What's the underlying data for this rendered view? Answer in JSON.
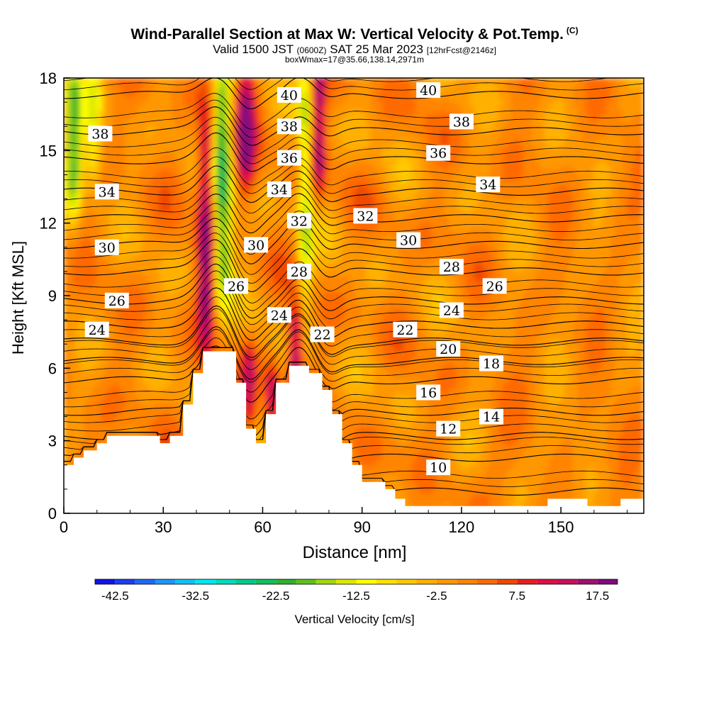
{
  "title": "Wind-Parallel Section at Max W: Vertical Velocity & Pot.Temp.",
  "title_suffix": "(C)",
  "subtitle_main": "Valid 1500 JST",
  "subtitle_utc": "(0600Z)",
  "subtitle_date": "SAT 25 Mar 2023",
  "subtitle_fcst": "[12hrFcst@2146z]",
  "subtitle_box": "boxWmax=17@35.66,138.14,2971m",
  "chart_data": {
    "type": "heatmap",
    "xlabel": "Distance [nm]",
    "ylabel": "Height [Kft MSL]",
    "xlim": [
      0,
      175
    ],
    "ylim": [
      0,
      18
    ],
    "xticks": [
      0,
      30,
      60,
      90,
      120,
      150
    ],
    "yticks": [
      0,
      3,
      6,
      9,
      12,
      15,
      18
    ],
    "colorbar": {
      "label": "Vertical Velocity [cm/s]",
      "min": -45,
      "max": 20,
      "step": 2.5,
      "tick_values": [
        -42.5,
        -32.5,
        -22.5,
        -12.5,
        -2.5,
        7.5,
        17.5
      ],
      "tick_labels": [
        "-42.5",
        "-32.5",
        "-22.5",
        "-12.5",
        "-2.5",
        "7.5",
        "17.5"
      ],
      "colors": [
        "#1212e8",
        "#1a3ef0",
        "#1f6af5",
        "#1e96f8",
        "#10c2f8",
        "#00e8f0",
        "#00dcbe",
        "#00cc8a",
        "#10c060",
        "#30b030",
        "#60c020",
        "#a0d810",
        "#dde800",
        "#ffff00",
        "#ffe000",
        "#ffc800",
        "#ffb000",
        "#ff9800",
        "#ff8400",
        "#ff6a00",
        "#f04800",
        "#e81e1e",
        "#dc1046",
        "#c8105e",
        "#a01070",
        "#800a80"
      ]
    },
    "theta_contours": [
      {
        "value": 10,
        "base_height": 0.9,
        "labels": [
          {
            "label": "10",
            "x": 113,
            "y": 1.9
          }
        ]
      },
      {
        "value": 12,
        "base_height": 2.3,
        "labels": [
          {
            "label": "12",
            "x": 116,
            "y": 3.5
          }
        ]
      },
      {
        "value": 14,
        "base_height": 3.2,
        "labels": [
          {
            "label": "14",
            "x": 129,
            "y": 4.0
          }
        ]
      },
      {
        "value": 16,
        "base_height": 4.2,
        "labels": [
          {
            "label": "16",
            "x": 110,
            "y": 5.0
          }
        ]
      },
      {
        "value": 18,
        "base_height": 5.5,
        "labels": [
          {
            "label": "18",
            "x": 129,
            "y": 6.2
          }
        ]
      },
      {
        "value": 20,
        "base_height": 6.3,
        "labels": [
          {
            "label": "20",
            "x": 116,
            "y": 6.8
          }
        ]
      },
      {
        "value": 22,
        "base_height": 7.1,
        "labels": [
          {
            "label": "22",
            "x": 78,
            "y": 7.4
          },
          {
            "label": "22",
            "x": 103,
            "y": 7.6
          }
        ]
      },
      {
        "value": 24,
        "base_height": 7.8,
        "labels": [
          {
            "label": "24",
            "x": 10,
            "y": 7.6
          },
          {
            "label": "24",
            "x": 65,
            "y": 8.2
          },
          {
            "label": "24",
            "x": 117,
            "y": 8.4
          }
        ]
      },
      {
        "value": 26,
        "base_height": 8.8,
        "labels": [
          {
            "label": "26",
            "x": 16,
            "y": 8.8
          },
          {
            "label": "26",
            "x": 52,
            "y": 9.4
          },
          {
            "label": "26",
            "x": 130,
            "y": 9.4
          }
        ]
      },
      {
        "value": 28,
        "base_height": 10.0,
        "labels": [
          {
            "label": "28",
            "x": 71,
            "y": 10.0
          },
          {
            "label": "28",
            "x": 117,
            "y": 10.2
          }
        ]
      },
      {
        "value": 30,
        "base_height": 11.1,
        "labels": [
          {
            "label": "30",
            "x": 13,
            "y": 11.0
          },
          {
            "label": "30",
            "x": 58,
            "y": 11.1
          },
          {
            "label": "30",
            "x": 104,
            "y": 11.3
          }
        ]
      },
      {
        "value": 32,
        "base_height": 12.2,
        "labels": [
          {
            "label": "32",
            "x": 71,
            "y": 12.1
          },
          {
            "label": "32",
            "x": 91,
            "y": 12.3
          }
        ]
      },
      {
        "value": 34,
        "base_height": 13.3,
        "labels": [
          {
            "label": "34",
            "x": 13,
            "y": 13.3
          },
          {
            "label": "34",
            "x": 65,
            "y": 13.4
          },
          {
            "label": "34",
            "x": 128,
            "y": 13.6
          }
        ]
      },
      {
        "value": 36,
        "base_height": 14.6,
        "labels": [
          {
            "label": "36",
            "x": 68,
            "y": 14.7
          },
          {
            "label": "36",
            "x": 113,
            "y": 14.9
          }
        ]
      },
      {
        "value": 38,
        "base_height": 15.8,
        "labels": [
          {
            "label": "38",
            "x": 11,
            "y": 15.7
          },
          {
            "label": "38",
            "x": 68,
            "y": 16.0
          },
          {
            "label": "38",
            "x": 120,
            "y": 16.2
          }
        ]
      },
      {
        "value": 40,
        "base_height": 17.3,
        "labels": [
          {
            "label": "40",
            "x": 68,
            "y": 17.3
          },
          {
            "label": "40",
            "x": 110,
            "y": 17.5
          }
        ]
      }
    ],
    "terrain_profile": [
      [
        0,
        2.0
      ],
      [
        3,
        2.0
      ],
      [
        3,
        2.3
      ],
      [
        6,
        2.3
      ],
      [
        6,
        2.6
      ],
      [
        10,
        2.6
      ],
      [
        10,
        2.9
      ],
      [
        13,
        2.9
      ],
      [
        13,
        3.2
      ],
      [
        29,
        3.2
      ],
      [
        29,
        2.9
      ],
      [
        32,
        2.9
      ],
      [
        32,
        3.2
      ],
      [
        36,
        3.2
      ],
      [
        36,
        4.5
      ],
      [
        39,
        4.5
      ],
      [
        39,
        5.8
      ],
      [
        42,
        5.8
      ],
      [
        42,
        6.7
      ],
      [
        52,
        6.7
      ],
      [
        52,
        5.4
      ],
      [
        55,
        5.4
      ],
      [
        55,
        3.5
      ],
      [
        58,
        3.5
      ],
      [
        58,
        2.9
      ],
      [
        61,
        2.9
      ],
      [
        61,
        4.1
      ],
      [
        64,
        4.1
      ],
      [
        64,
        5.4
      ],
      [
        68,
        5.4
      ],
      [
        68,
        6.1
      ],
      [
        74,
        6.1
      ],
      [
        74,
        5.8
      ],
      [
        78,
        5.8
      ],
      [
        78,
        5.1
      ],
      [
        81,
        5.1
      ],
      [
        81,
        4.1
      ],
      [
        84,
        4.1
      ],
      [
        84,
        2.9
      ],
      [
        87,
        2.9
      ],
      [
        87,
        2.0
      ],
      [
        90,
        2.0
      ],
      [
        90,
        1.3
      ],
      [
        97,
        1.3
      ],
      [
        97,
        1.0
      ],
      [
        100,
        1.0
      ],
      [
        100,
        0.6
      ],
      [
        103,
        0.6
      ],
      [
        103,
        0.3
      ],
      [
        146,
        0.3
      ],
      [
        146,
        0.6
      ],
      [
        158,
        0.6
      ],
      [
        158,
        0.3
      ],
      [
        168,
        0.3
      ],
      [
        168,
        0.6
      ],
      [
        175,
        0.6
      ]
    ],
    "vertical_velocity_features": [
      {
        "kind": "updraft",
        "x": 43,
        "x_halfwidth": 2.5,
        "y_from": 7.8,
        "y_to": 16.0,
        "peak": 18
      },
      {
        "kind": "updraft",
        "x": 55,
        "x_halfwidth": 3.0,
        "y_from": 14.0,
        "y_to": 18.0,
        "peak": 16
      },
      {
        "kind": "updraft",
        "x": 70,
        "x_halfwidth": 2.2,
        "y_from": 5.5,
        "y_to": 8.0,
        "peak": 18
      },
      {
        "kind": "updraft",
        "x": 77,
        "x_halfwidth": 2.0,
        "y_from": 14.0,
        "y_to": 18.0,
        "peak": 15
      },
      {
        "kind": "updraft",
        "x": 63,
        "x_halfwidth": 2.0,
        "y_from": 3.8,
        "y_to": 5.5,
        "peak": 14
      },
      {
        "kind": "updraft",
        "x": 56,
        "x_halfwidth": 2.0,
        "y_from": 4.0,
        "y_to": 6.5,
        "peak": 10
      },
      {
        "kind": "downdraft",
        "x": 48,
        "x_halfwidth": 3.0,
        "y_from": 9.5,
        "y_to": 18.0,
        "peak": -22
      },
      {
        "kind": "downdraft",
        "x": 73,
        "x_halfwidth": 2.2,
        "y_from": 9.0,
        "y_to": 18.0,
        "peak": -14
      },
      {
        "kind": "downdraft",
        "x": 3,
        "x_halfwidth": 2.5,
        "y_from": 13.0,
        "y_to": 18.0,
        "peak": -20
      },
      {
        "kind": "downdraft",
        "x": 9,
        "x_halfwidth": 2.5,
        "y_from": 14.0,
        "y_to": 18.0,
        "peak": -10
      }
    ]
  }
}
